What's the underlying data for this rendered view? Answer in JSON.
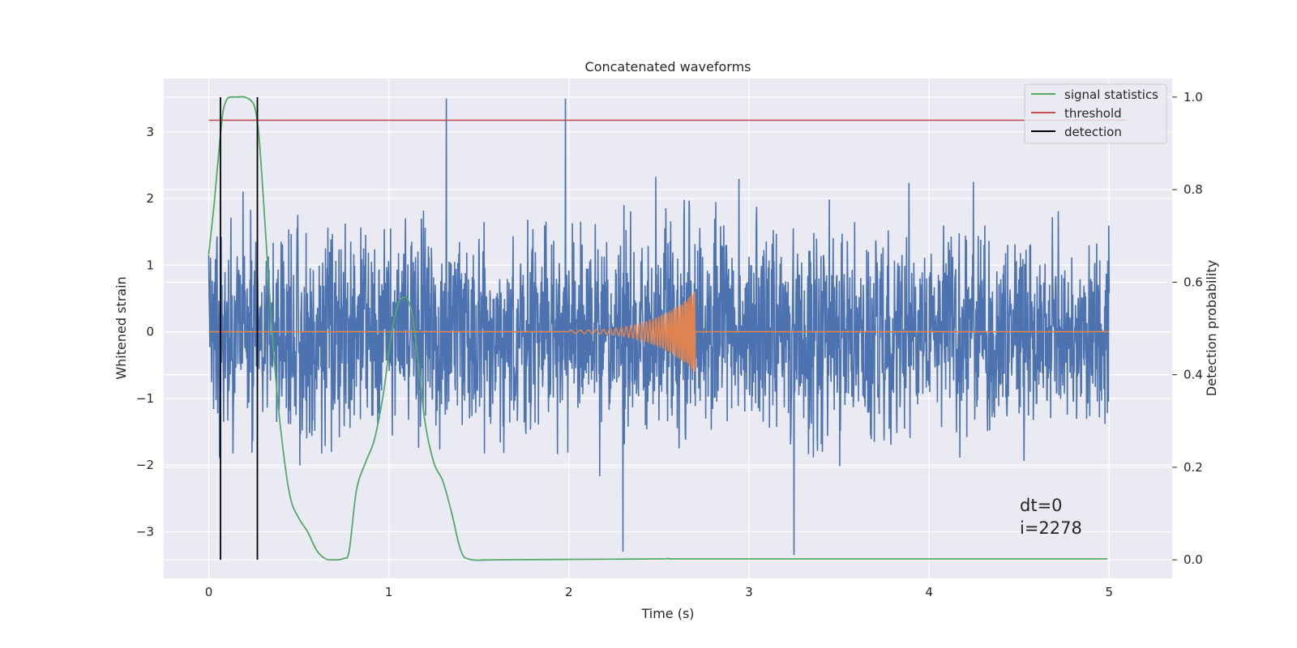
{
  "chart_data": {
    "type": "line",
    "title": "Concatenated waveforms",
    "xlabel": "Time (s)",
    "ylabel": "Whitened strain",
    "y2label": "Detection probability",
    "xlim": [
      -0.25,
      5.35
    ],
    "ylim": [
      -3.7,
      3.8
    ],
    "y2lim": [
      -0.04,
      1.04
    ],
    "x_ticks": [
      0,
      1,
      2,
      3,
      4,
      5
    ],
    "x_tick_labels": [
      "0",
      "1",
      "2",
      "3",
      "4",
      "5"
    ],
    "y_ticks": [
      -3,
      -2,
      -1,
      0,
      1,
      2,
      3
    ],
    "y_tick_labels": [
      "−3",
      "−2",
      "−1",
      "0",
      "1",
      "2",
      "3"
    ],
    "y2_ticks": [
      0.0,
      0.2,
      0.4,
      0.6,
      0.8,
      1.0
    ],
    "y2_tick_labels": [
      "0.0",
      "0.2",
      "0.4",
      "0.6",
      "0.8",
      "1.0"
    ],
    "grid": true,
    "legend_position": "top-right",
    "series": [
      {
        "name": "whitened strain",
        "axis": "left",
        "color": "#4c72b0",
        "description_values": {
          "x_start": 0,
          "x_end": 5,
          "typical_range": [
            -2.3,
            2.3
          ],
          "peaks": [
            [
              1.32,
              3.5
            ],
            [
              1.98,
              3.5
            ],
            [
              3.25,
              -3.35
            ],
            [
              2.3,
              -3.3
            ]
          ]
        }
      },
      {
        "name": "injected waveform",
        "axis": "left",
        "color": "#dd8452",
        "description_values": {
          "x_start": 0,
          "x_end": 5,
          "chirp_start": 2.0,
          "chirp_peak": 2.7,
          "peak_amplitude": 0.6
        }
      },
      {
        "name": "signal statistics",
        "axis": "right",
        "color": "#55a868",
        "x": [
          0.0,
          0.03,
          0.06,
          0.08,
          0.1,
          0.12,
          0.15,
          0.2,
          0.24,
          0.26,
          0.28,
          0.3,
          0.33,
          0.36,
          0.4,
          0.45,
          0.5,
          0.55,
          0.6,
          0.65,
          0.7,
          0.75,
          0.78,
          0.82,
          0.87,
          0.92,
          0.97,
          1.0,
          1.03,
          1.06,
          1.1,
          1.13,
          1.16,
          1.2,
          1.25,
          1.3,
          1.35,
          1.4,
          1.45,
          1.6,
          2.0,
          2.5,
          2.55,
          2.6,
          3.0,
          3.5,
          4.0,
          4.5,
          4.99
        ],
        "values": [
          0.66,
          0.77,
          0.9,
          0.97,
          0.995,
          1.0,
          1.0,
          1.0,
          0.99,
          0.97,
          0.91,
          0.8,
          0.62,
          0.45,
          0.28,
          0.14,
          0.09,
          0.06,
          0.02,
          0.002,
          0.0,
          0.003,
          0.02,
          0.15,
          0.21,
          0.26,
          0.36,
          0.45,
          0.52,
          0.56,
          0.565,
          0.53,
          0.44,
          0.3,
          0.21,
          0.17,
          0.1,
          0.02,
          0.001,
          0.0,
          0.001,
          0.002,
          0.003,
          0.002,
          0.002,
          0.002,
          0.002,
          0.002,
          0.002
        ]
      },
      {
        "name": "threshold",
        "axis": "right",
        "color": "#c44e52",
        "x": [
          0.0,
          5.1
        ],
        "values": [
          0.95,
          0.95
        ]
      },
      {
        "name": "detection",
        "axis": "right",
        "color": "#000000",
        "type": "vlines",
        "x": [
          0.065,
          0.27
        ],
        "y_range": [
          0.0,
          1.0
        ]
      }
    ],
    "legend": [
      {
        "label": "signal statistics",
        "color": "#55a868"
      },
      {
        "label": "threshold",
        "color": "#c44e52"
      },
      {
        "label": "detection",
        "color": "#000000"
      }
    ],
    "annotations": [
      "dt=0",
      "i=2278"
    ]
  }
}
